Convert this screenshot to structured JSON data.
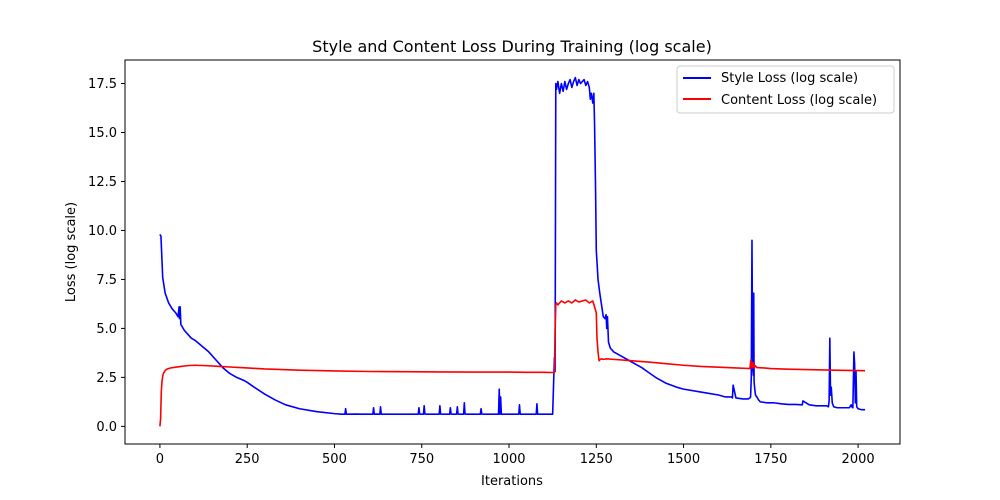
{
  "chart_data": {
    "type": "line",
    "title": "Style and Content Loss During Training (log scale)",
    "xlabel": "Iterations",
    "ylabel": "Loss (log scale)",
    "xlim": [
      -100,
      2120
    ],
    "ylim": [
      -0.9,
      18.7
    ],
    "xticks": [
      0,
      250,
      500,
      750,
      1000,
      1250,
      1500,
      1750,
      2000
    ],
    "yticks": [
      0.0,
      2.5,
      5.0,
      7.5,
      10.0,
      12.5,
      15.0,
      17.5
    ],
    "xtick_labels": [
      "0",
      "250",
      "500",
      "750",
      "1000",
      "1250",
      "1500",
      "1750",
      "2000"
    ],
    "ytick_labels": [
      "0.0",
      "2.5",
      "5.0",
      "7.5",
      "10.0",
      "12.5",
      "15.0",
      "17.5"
    ],
    "grid": false,
    "legend_position": "top-right",
    "series": [
      {
        "name": "Style Loss (log scale)",
        "color": "#0000ff",
        "x": [
          0,
          3,
          8,
          15,
          25,
          35,
          45,
          52,
          55,
          56,
          58,
          60,
          70,
          80,
          90,
          100,
          120,
          140,
          160,
          180,
          200,
          220,
          240,
          250,
          270,
          300,
          330,
          360,
          400,
          450,
          500,
          520,
          530,
          532,
          534,
          540,
          560,
          580,
          600,
          610,
          612,
          614,
          620,
          630,
          632,
          634,
          640,
          660,
          680,
          700,
          720,
          740,
          742,
          744,
          750,
          755,
          757,
          759,
          765,
          800,
          802,
          804,
          810,
          830,
          832,
          834,
          840,
          850,
          852,
          854,
          860,
          870,
          872,
          874,
          880,
          900,
          918,
          920,
          922,
          930,
          960,
          970,
          972,
          974,
          976,
          978,
          985,
          1000,
          1020,
          1028,
          1030,
          1032,
          1040,
          1060,
          1078,
          1080,
          1082,
          1090,
          1110,
          1125,
          1130,
          1132,
          1134,
          1136,
          1140,
          1145,
          1150,
          1155,
          1160,
          1165,
          1170,
          1175,
          1180,
          1185,
          1190,
          1195,
          1200,
          1205,
          1210,
          1215,
          1220,
          1225,
          1230,
          1233,
          1236,
          1240,
          1243,
          1245,
          1248,
          1250,
          1255,
          1260,
          1265,
          1270,
          1275,
          1278,
          1280,
          1282,
          1285,
          1290,
          1300,
          1320,
          1340,
          1360,
          1380,
          1400,
          1420,
          1450,
          1480,
          1500,
          1550,
          1600,
          1620,
          1638,
          1640,
          1642,
          1650,
          1670,
          1685,
          1690,
          1692,
          1694,
          1696,
          1698,
          1700,
          1701,
          1702,
          1704,
          1706,
          1710,
          1715,
          1720,
          1740,
          1760,
          1780,
          1800,
          1820,
          1840,
          1842,
          1860,
          1880,
          1900,
          1910,
          1915,
          1917,
          1919,
          1921,
          1923,
          1926,
          1930,
          1940,
          1960,
          1975,
          1980,
          1982,
          1985,
          1988,
          1990,
          1992,
          1994,
          1996,
          2000,
          2010,
          2020
        ],
        "values": [
          9.8,
          9.7,
          7.6,
          6.8,
          6.3,
          6.0,
          5.8,
          5.6,
          6.1,
          5.5,
          6.1,
          5.2,
          4.9,
          4.7,
          4.5,
          4.4,
          4.1,
          3.8,
          3.4,
          3.0,
          2.7,
          2.5,
          2.35,
          2.25,
          2.0,
          1.65,
          1.35,
          1.1,
          0.9,
          0.75,
          0.65,
          0.62,
          0.62,
          0.9,
          0.62,
          0.62,
          0.63,
          0.62,
          0.62,
          0.62,
          0.95,
          0.62,
          0.63,
          0.62,
          1.0,
          0.62,
          0.62,
          0.62,
          0.62,
          0.62,
          0.62,
          0.62,
          0.95,
          0.63,
          0.62,
          0.62,
          1.05,
          0.63,
          0.62,
          0.62,
          1.05,
          0.63,
          0.62,
          0.62,
          0.95,
          0.63,
          0.62,
          0.62,
          1.0,
          0.63,
          0.62,
          0.62,
          1.2,
          0.63,
          0.62,
          0.62,
          0.62,
          0.9,
          0.63,
          0.62,
          0.62,
          0.62,
          1.9,
          0.62,
          1.5,
          0.62,
          0.62,
          0.62,
          0.62,
          0.62,
          1.1,
          0.62,
          0.62,
          0.62,
          0.62,
          1.15,
          0.62,
          0.62,
          0.62,
          0.62,
          3.5,
          2.8,
          17.5,
          17.2,
          17.6,
          17.0,
          17.5,
          17.1,
          17.6,
          17.2,
          17.5,
          17.7,
          17.3,
          17.6,
          17.8,
          17.4,
          17.7,
          17.5,
          17.6,
          17.7,
          17.4,
          17.6,
          17.3,
          16.7,
          17.0,
          16.5,
          17.0,
          15.5,
          12.0,
          9.0,
          7.5,
          6.8,
          6.2,
          5.6,
          5.5,
          5.7,
          5.0,
          5.6,
          4.3,
          4.0,
          3.8,
          3.6,
          3.4,
          3.2,
          3.0,
          2.75,
          2.5,
          2.2,
          2.0,
          1.9,
          1.75,
          1.6,
          1.5,
          1.5,
          1.45,
          2.1,
          1.45,
          1.4,
          1.4,
          1.45,
          1.5,
          2.5,
          9.5,
          3.0,
          2.6,
          6.8,
          2.3,
          1.9,
          1.6,
          1.5,
          1.35,
          1.25,
          1.2,
          1.2,
          1.15,
          1.12,
          1.12,
          1.1,
          1.3,
          1.1,
          1.05,
          1.05,
          1.05,
          1.0,
          1.3,
          4.5,
          1.6,
          2.0,
          1.2,
          1.0,
          0.95,
          0.95,
          0.95,
          1.1,
          1.0,
          0.95,
          3.8,
          3.2,
          1.2,
          2.8,
          1.0,
          0.9,
          0.85,
          0.85
        ]
      },
      {
        "name": "Content Loss (log scale)",
        "color": "#ff0000",
        "x": [
          0,
          2,
          4,
          6,
          8,
          10,
          15,
          20,
          30,
          45,
          60,
          80,
          100,
          130,
          160,
          200,
          250,
          300,
          400,
          500,
          600,
          700,
          800,
          900,
          1000,
          1050,
          1100,
          1125,
          1130,
          1132,
          1134,
          1136,
          1140,
          1150,
          1160,
          1170,
          1180,
          1190,
          1200,
          1210,
          1220,
          1230,
          1240,
          1245,
          1250,
          1252,
          1255,
          1258,
          1260,
          1265,
          1270,
          1280,
          1300,
          1350,
          1400,
          1450,
          1500,
          1550,
          1600,
          1650,
          1680,
          1690,
          1693,
          1696,
          1699,
          1702,
          1705,
          1710,
          1730,
          1750,
          1800,
          1850,
          1900,
          1950,
          2000,
          2020
        ],
        "values": [
          0.0,
          0.4,
          1.8,
          2.3,
          2.55,
          2.7,
          2.85,
          2.92,
          2.98,
          3.02,
          3.06,
          3.1,
          3.12,
          3.1,
          3.07,
          3.03,
          2.98,
          2.93,
          2.87,
          2.83,
          2.8,
          2.79,
          2.78,
          2.77,
          2.77,
          2.76,
          2.76,
          2.75,
          2.75,
          4.8,
          6.2,
          6.3,
          6.2,
          6.4,
          6.3,
          6.4,
          6.3,
          6.45,
          6.35,
          6.4,
          6.45,
          6.3,
          6.4,
          6.1,
          5.8,
          4.5,
          3.8,
          3.35,
          3.4,
          3.45,
          3.42,
          3.45,
          3.42,
          3.35,
          3.28,
          3.2,
          3.12,
          3.06,
          3.02,
          2.98,
          2.96,
          2.95,
          3.4,
          2.98,
          3.25,
          2.98,
          3.1,
          3.0,
          2.98,
          2.95,
          2.92,
          2.9,
          2.88,
          2.86,
          2.85,
          2.84
        ]
      }
    ]
  }
}
